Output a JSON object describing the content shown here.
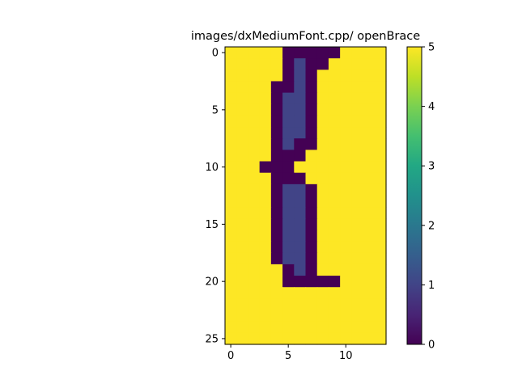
{
  "chart_data": {
    "type": "heatmap",
    "title": "images/dxMediumFont.cpp/ openBrace",
    "xlabel": "",
    "ylabel": "",
    "xlim": [
      -0.5,
      13.5
    ],
    "ylim": [
      25.5,
      -0.5
    ],
    "x_ticks": [
      0,
      5,
      10
    ],
    "x_tick_labels": [
      "0",
      "5",
      "10"
    ],
    "y_ticks": [
      0,
      5,
      10,
      15,
      20,
      25
    ],
    "y_tick_labels": [
      "0",
      "5",
      "10",
      "15",
      "20",
      "25"
    ],
    "colormap": "viridis",
    "vmin": 0,
    "vmax": 5,
    "colorbar_ticks": [
      0,
      1,
      2,
      3,
      4,
      5
    ],
    "colorbar_tick_labels": [
      "0",
      "1",
      "2",
      "3",
      "4",
      "5"
    ],
    "grid": false,
    "rows": 26,
    "cols": 14,
    "values": [
      [
        5,
        5,
        5,
        5,
        5,
        0,
        0,
        0,
        0,
        0,
        5,
        5,
        5,
        5
      ],
      [
        5,
        5,
        5,
        5,
        5,
        0,
        1,
        0,
        0,
        5,
        5,
        5,
        5,
        5
      ],
      [
        5,
        5,
        5,
        5,
        5,
        0,
        1,
        0,
        5,
        5,
        5,
        5,
        5,
        5
      ],
      [
        5,
        5,
        5,
        5,
        0,
        0,
        1,
        0,
        5,
        5,
        5,
        5,
        5,
        5
      ],
      [
        5,
        5,
        5,
        5,
        0,
        1,
        1,
        0,
        5,
        5,
        5,
        5,
        5,
        5
      ],
      [
        5,
        5,
        5,
        5,
        0,
        1,
        1,
        0,
        5,
        5,
        5,
        5,
        5,
        5
      ],
      [
        5,
        5,
        5,
        5,
        0,
        1,
        1,
        0,
        5,
        5,
        5,
        5,
        5,
        5
      ],
      [
        5,
        5,
        5,
        5,
        0,
        1,
        1,
        0,
        5,
        5,
        5,
        5,
        5,
        5
      ],
      [
        5,
        5,
        5,
        5,
        0,
        1,
        0,
        0,
        5,
        5,
        5,
        5,
        5,
        5
      ],
      [
        5,
        5,
        5,
        5,
        0,
        0,
        0,
        5,
        5,
        5,
        5,
        5,
        5,
        5
      ],
      [
        5,
        5,
        5,
        0,
        0,
        0,
        5,
        5,
        5,
        5,
        5,
        5,
        5,
        5
      ],
      [
        5,
        5,
        5,
        5,
        0,
        0,
        0,
        5,
        5,
        5,
        5,
        5,
        5,
        5
      ],
      [
        5,
        5,
        5,
        5,
        0,
        1,
        1,
        0,
        5,
        5,
        5,
        5,
        5,
        5
      ],
      [
        5,
        5,
        5,
        5,
        0,
        1,
        1,
        0,
        5,
        5,
        5,
        5,
        5,
        5
      ],
      [
        5,
        5,
        5,
        5,
        0,
        1,
        1,
        0,
        5,
        5,
        5,
        5,
        5,
        5
      ],
      [
        5,
        5,
        5,
        5,
        0,
        1,
        1,
        0,
        5,
        5,
        5,
        5,
        5,
        5
      ],
      [
        5,
        5,
        5,
        5,
        0,
        1,
        1,
        0,
        5,
        5,
        5,
        5,
        5,
        5
      ],
      [
        5,
        5,
        5,
        5,
        0,
        1,
        1,
        0,
        5,
        5,
        5,
        5,
        5,
        5
      ],
      [
        5,
        5,
        5,
        5,
        0,
        1,
        1,
        0,
        5,
        5,
        5,
        5,
        5,
        5
      ],
      [
        5,
        5,
        5,
        5,
        5,
        0,
        1,
        0,
        5,
        5,
        5,
        5,
        5,
        5
      ],
      [
        5,
        5,
        5,
        5,
        5,
        0,
        0,
        0,
        0,
        0,
        5,
        5,
        5,
        5
      ],
      [
        5,
        5,
        5,
        5,
        5,
        5,
        5,
        5,
        5,
        5,
        5,
        5,
        5,
        5
      ],
      [
        5,
        5,
        5,
        5,
        5,
        5,
        5,
        5,
        5,
        5,
        5,
        5,
        5,
        5
      ],
      [
        5,
        5,
        5,
        5,
        5,
        5,
        5,
        5,
        5,
        5,
        5,
        5,
        5,
        5
      ],
      [
        5,
        5,
        5,
        5,
        5,
        5,
        5,
        5,
        5,
        5,
        5,
        5,
        5,
        5
      ],
      [
        5,
        5,
        5,
        5,
        5,
        5,
        5,
        5,
        5,
        5,
        5,
        5,
        5,
        5
      ]
    ]
  }
}
